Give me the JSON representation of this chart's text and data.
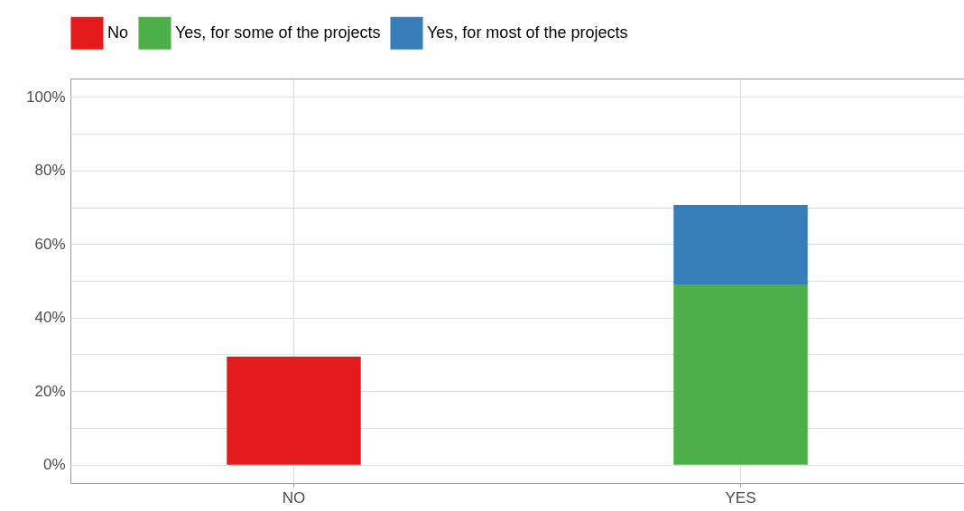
{
  "chart_data": {
    "type": "bar",
    "stacked": true,
    "categories": [
      "NO",
      "YES"
    ],
    "series": [
      {
        "name": "No",
        "color": "#e41a1c",
        "values": [
          29.4,
          null
        ]
      },
      {
        "name": "Yes, for some of the projects",
        "color": "#4daf4a",
        "values": [
          null,
          49.0
        ]
      },
      {
        "name": "Yes, for most of the projects",
        "color": "#377eb8",
        "values": [
          null,
          21.6
        ]
      }
    ],
    "ylim": [
      -5,
      105
    ],
    "yticks": [
      {
        "value": 0,
        "label": "0%"
      },
      {
        "value": 10,
        "label": null
      },
      {
        "value": 20,
        "label": "20%"
      },
      {
        "value": 30,
        "label": null
      },
      {
        "value": 40,
        "label": "40%"
      },
      {
        "value": 50,
        "label": null
      },
      {
        "value": 60,
        "label": "60%"
      },
      {
        "value": 70,
        "label": null
      },
      {
        "value": 80,
        "label": "80%"
      },
      {
        "value": 90,
        "label": null
      },
      {
        "value": 100,
        "label": "100%"
      }
    ],
    "grid": true,
    "legend": "top"
  }
}
